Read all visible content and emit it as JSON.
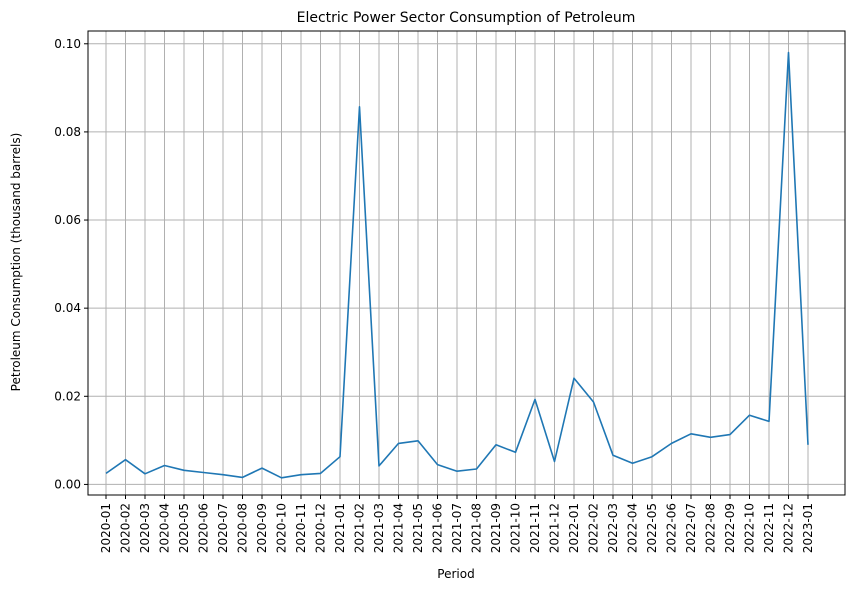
{
  "chart_data": {
    "type": "line",
    "title": "Electric Power Sector Consumption of Petroleum",
    "xlabel": "Period",
    "ylabel": "Petroleum Consumption (thousand barrels)",
    "grid": true,
    "ylim": [
      -0.0024,
      0.1029
    ],
    "yticks": [
      0.0,
      0.02,
      0.04,
      0.06,
      0.08,
      0.1
    ],
    "ytick_labels": [
      "0.00",
      "0.02",
      "0.04",
      "0.06",
      "0.08",
      "0.10"
    ],
    "line_color": "#1f77b4",
    "grid_color": "#b0b0b0",
    "categories": [
      "2020-01",
      "2020-02",
      "2020-03",
      "2020-04",
      "2020-05",
      "2020-06",
      "2020-07",
      "2020-08",
      "2020-09",
      "2020-10",
      "2020-11",
      "2020-12",
      "2021-01",
      "2021-02",
      "2021-03",
      "2021-04",
      "2021-05",
      "2021-06",
      "2021-07",
      "2021-08",
      "2021-09",
      "2021-10",
      "2021-11",
      "2021-12",
      "2022-01",
      "2022-02",
      "2022-03",
      "2022-04",
      "2022-05",
      "2022-06",
      "2022-07",
      "2022-08",
      "2022-09",
      "2022-10",
      "2022-11",
      "2022-12",
      "2023-01"
    ],
    "values": [
      0.0025,
      0.0056,
      0.0024,
      0.0043,
      0.0032,
      0.0027,
      0.0022,
      0.0016,
      0.0037,
      0.0015,
      0.0022,
      0.0025,
      0.0063,
      0.0857,
      0.0042,
      0.0093,
      0.0099,
      0.0045,
      0.003,
      0.0035,
      0.009,
      0.0073,
      0.0193,
      0.0052,
      0.0241,
      0.0187,
      0.0066,
      0.0048,
      0.0063,
      0.0093,
      0.0115,
      0.0107,
      0.0113,
      0.0157,
      0.0143,
      0.098,
      0.009
    ]
  }
}
